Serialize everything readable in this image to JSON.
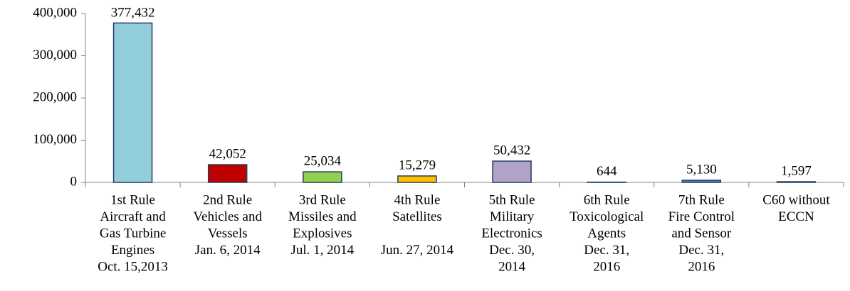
{
  "chart_data": {
    "type": "bar",
    "categories": [
      [
        "1st Rule",
        "Aircraft and",
        "Gas Turbine",
        "Engines",
        "Oct. 15,2013"
      ],
      [
        "2nd Rule",
        "Vehicles and",
        "Vessels",
        "Jan. 6, 2014"
      ],
      [
        "3rd Rule",
        "Missiles and",
        "Explosives",
        "Jul. 1, 2014"
      ],
      [
        "4th Rule",
        "Satellites",
        "",
        "Jun. 27, 2014"
      ],
      [
        "5th Rule",
        "Military",
        "Electronics",
        "Dec. 30,",
        "2014"
      ],
      [
        "6th Rule",
        "Toxicological",
        "Agents",
        "Dec. 31,",
        "2016"
      ],
      [
        "7th Rule",
        "Fire Control",
        "and Sensor",
        "Dec. 31,",
        "2016"
      ],
      [
        "C60 without",
        "ECCN"
      ]
    ],
    "values": [
      377432,
      42052,
      25034,
      15279,
      50432,
      644,
      5130,
      1597
    ],
    "value_labels": [
      "377,432",
      "42,052",
      "25,034",
      "15,279",
      "50,432",
      "644",
      "5,130",
      "1,597"
    ],
    "colors": [
      "#92cddc",
      "#c00000",
      "#92d050",
      "#ffc000",
      "#b3a2c7",
      "#c0504d",
      "#4f81bd",
      "#f79646"
    ],
    "ylim": [
      0,
      400000
    ],
    "yticks": [
      0,
      {
        "value": 100000,
        "label": "100,000"
      },
      {
        "value": 200000,
        "label": "200,000"
      },
      {
        "value": 300000,
        "label": "300,000"
      },
      {
        "value": 400000,
        "label": "400,000"
      }
    ],
    "grid": false
  }
}
